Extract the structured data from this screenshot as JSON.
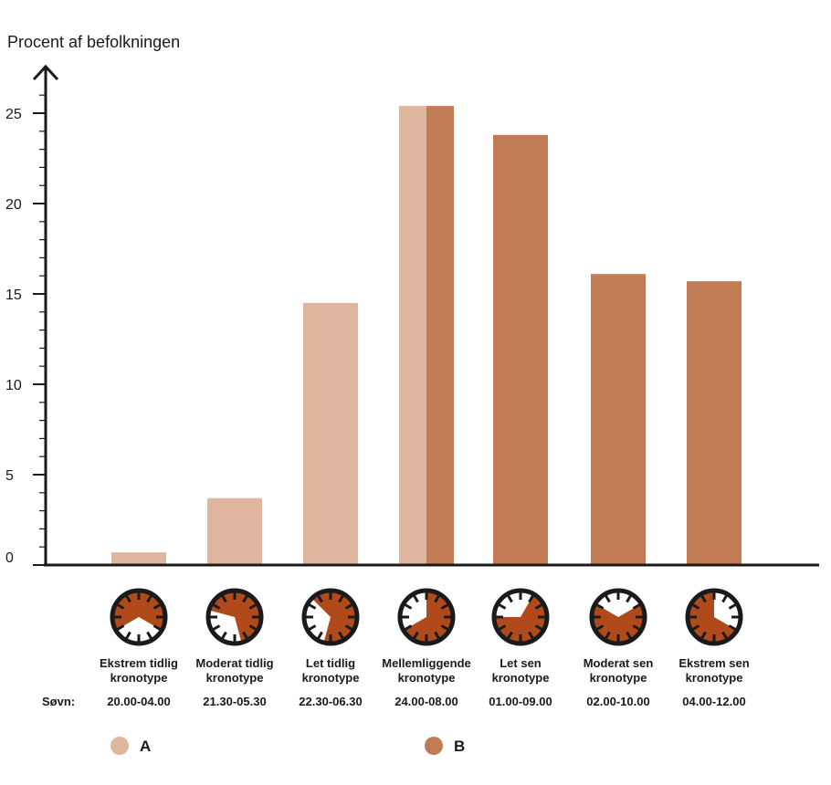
{
  "chart_data": {
    "type": "bar",
    "ylabel": "Procent af befolkningen",
    "ylim": [
      0,
      27
    ],
    "yticks": [
      0,
      5,
      10,
      15,
      20,
      25
    ],
    "sleep_label": "Søvn:",
    "categories": [
      {
        "line1": "Ekstrem tidlig",
        "line2": "kronotype",
        "sleep": "20.00-04.00",
        "sleep_start_h": 20,
        "sleep_end_h": 4
      },
      {
        "line1": "Moderat tidlig",
        "line2": "kronotype",
        "sleep": "21.30-05.30",
        "sleep_start_h": 21.5,
        "sleep_end_h": 5.5
      },
      {
        "line1": "Let tidlig",
        "line2": "kronotype",
        "sleep": "22.30-06.30",
        "sleep_start_h": 22.5,
        "sleep_end_h": 6.5
      },
      {
        "line1": "Mellemliggende",
        "line2": "kronotype",
        "sleep": "24.00-08.00",
        "sleep_start_h": 24,
        "sleep_end_h": 8
      },
      {
        "line1": "Let sen",
        "line2": "kronotype",
        "sleep": "01.00-09.00",
        "sleep_start_h": 1,
        "sleep_end_h": 9
      },
      {
        "line1": "Moderat sen",
        "line2": "kronotype",
        "sleep": "02.00-10.00",
        "sleep_start_h": 2,
        "sleep_end_h": 10
      },
      {
        "line1": "Ekstrem sen",
        "line2": "kronotype",
        "sleep": "04.00-12.00",
        "sleep_start_h": 4,
        "sleep_end_h": 12
      }
    ],
    "series": [
      {
        "name": "A",
        "color": "#e0b59e",
        "values": [
          0.7,
          3.7,
          14.5,
          25.4,
          null,
          null,
          null
        ]
      },
      {
        "name": "B",
        "color": "#c27c55",
        "values": [
          null,
          null,
          null,
          25.4,
          23.8,
          16.1,
          15.7
        ]
      }
    ],
    "clock_colors": {
      "fill": "#b04a1a",
      "ring": "#1a1a1a"
    }
  }
}
